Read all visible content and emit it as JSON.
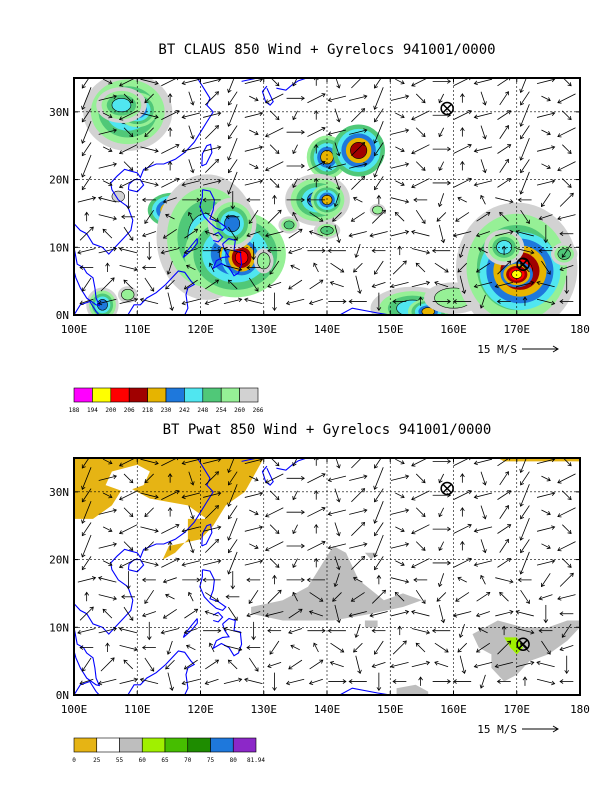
{
  "chart_data": [
    {
      "type": "heatmap",
      "title": "BT CLAUS 850 Wind + Gyrelocs 941001/0000",
      "x_ticks": [
        "100E",
        "110E",
        "120E",
        "130E",
        "140E",
        "150E",
        "160E",
        "170E",
        "180"
      ],
      "y_ticks": [
        "0N",
        "10N",
        "20N",
        "30N"
      ],
      "xlim": [
        100,
        180
      ],
      "ylim": [
        0,
        35
      ],
      "grid": true,
      "vector_scale_label": "15 M/S",
      "gyre_markers": [
        {
          "lon": 159,
          "lat": 30.5
        },
        {
          "lon": 171,
          "lat": 7.5
        }
      ],
      "colorbar": {
        "labels": [
          "188",
          "194",
          "200",
          "206",
          "218",
          "230",
          "242",
          "248",
          "254",
          "260",
          "266"
        ],
        "colors": [
          "#ff00ff",
          "#ffff00",
          "#ff0000",
          "#a00000",
          "#e6b400",
          "#1e78dc",
          "#50e6f0",
          "#50c878",
          "#96f096",
          "#d2d2d2"
        ]
      },
      "blobs": [
        {
          "lon": 108.5,
          "lat": 30.0,
          "c": [
            2.2,
            1.8
          ],
          "core": "#1e78dc"
        },
        {
          "lon": 110.0,
          "lat": 30.3,
          "c": [
            1.0,
            0.8
          ],
          "core": "#e6b400"
        },
        {
          "lon": 107.5,
          "lat": 31.0,
          "c": [
            1.5,
            1.0
          ],
          "core": "#50e6f0"
        },
        {
          "lon": 115.5,
          "lat": 15.5,
          "c": [
            1.2,
            0.8
          ],
          "core": "#a00000"
        },
        {
          "lon": 121.0,
          "lat": 11.5,
          "c": [
            3.0,
            3.5
          ],
          "core": "#50e6f0"
        },
        {
          "lon": 125.5,
          "lat": 9.0,
          "c": [
            2.5,
            2.0
          ],
          "core": "#e6b400"
        },
        {
          "lon": 126.5,
          "lat": 8.5,
          "c": [
            1.0,
            1.0
          ],
          "core": "#ff0000"
        },
        {
          "lon": 125.0,
          "lat": 13.5,
          "c": [
            1.2,
            1.2
          ],
          "core": "#1e78dc"
        },
        {
          "lon": 130.0,
          "lat": 8.0,
          "c": [
            1.0,
            1.2
          ],
          "core": "#96f096"
        },
        {
          "lon": 140.0,
          "lat": 23.3,
          "c": [
            1.0,
            1.0
          ],
          "core": "#e6b400"
        },
        {
          "lon": 145.0,
          "lat": 24.3,
          "c": [
            1.3,
            1.2
          ],
          "core": "#a00000"
        },
        {
          "lon": 138.5,
          "lat": 17.0,
          "c": [
            1.6,
            1.2
          ],
          "core": "#1e78dc"
        },
        {
          "lon": 140.0,
          "lat": 17.0,
          "c": [
            0.8,
            0.7
          ],
          "core": "#e6b400"
        },
        {
          "lon": 140.0,
          "lat": 12.5,
          "c": [
            1.0,
            0.6
          ],
          "core": "#50c878"
        },
        {
          "lon": 148.0,
          "lat": 15.5,
          "c": [
            0.8,
            0.6
          ],
          "core": "#96f096"
        },
        {
          "lon": 134.0,
          "lat": 13.3,
          "c": [
            0.8,
            0.6
          ],
          "core": "#50c878"
        },
        {
          "lon": 104.5,
          "lat": 1.5,
          "c": [
            0.8,
            0.8
          ],
          "core": "#1e78dc"
        },
        {
          "lon": 108.5,
          "lat": 3.0,
          "c": [
            1.0,
            0.8
          ],
          "core": "#96f096"
        },
        {
          "lon": 107.0,
          "lat": 17.5,
          "c": [
            1.0,
            0.8
          ],
          "core": "#d2d2d2"
        },
        {
          "lon": 153.5,
          "lat": 1.0,
          "c": [
            2.5,
            1.2
          ],
          "core": "#50e6f0"
        },
        {
          "lon": 156.0,
          "lat": 0.5,
          "c": [
            1.0,
            0.6
          ],
          "core": "#e6b400"
        },
        {
          "lon": 160.0,
          "lat": 2.5,
          "c": [
            3.0,
            1.5
          ],
          "core": "#96f096"
        },
        {
          "lon": 165.5,
          "lat": 1.5,
          "c": [
            1.0,
            1.0
          ],
          "core": "#50e6f0"
        },
        {
          "lon": 170.0,
          "lat": 7.0,
          "c": [
            3.0,
            3.0
          ],
          "core": "#1e78dc"
        },
        {
          "lon": 170.5,
          "lat": 6.5,
          "c": [
            2.0,
            1.8
          ],
          "core": "#ff0000"
        },
        {
          "lon": 170.0,
          "lat": 6.0,
          "c": [
            0.8,
            0.6
          ],
          "core": "#ffff00"
        },
        {
          "lon": 168.0,
          "lat": 10.0,
          "c": [
            1.2,
            1.0
          ],
          "core": "#50e6f0"
        },
        {
          "lon": 177.5,
          "lat": 9.0,
          "c": [
            1.0,
            0.8
          ],
          "core": "#50c878"
        }
      ]
    },
    {
      "type": "heatmap",
      "title": "BT Pwat 850 Wind + Gyrelocs 941001/0000",
      "x_ticks": [
        "100E",
        "110E",
        "120E",
        "130E",
        "140E",
        "150E",
        "160E",
        "170E",
        "180"
      ],
      "y_ticks": [
        "0N",
        "10N",
        "20N",
        "30N"
      ],
      "xlim": [
        100,
        180
      ],
      "ylim": [
        0,
        35
      ],
      "grid": true,
      "vector_scale_label": "15 M/S",
      "gyre_markers": [
        {
          "lon": 159,
          "lat": 30.5
        },
        {
          "lon": 171,
          "lat": 7.5
        }
      ],
      "colorbar": {
        "labels": [
          "0",
          "25",
          "55",
          "60",
          "65",
          "70",
          "75",
          "80",
          "81.94"
        ],
        "colors": [
          "#e6b414",
          "#ffffff",
          "#bebebe",
          "#a0f000",
          "#46be00",
          "#1e8c00",
          "#1e78dc",
          "#8c28c8"
        ]
      },
      "regions": [
        {
          "fill": "#e6b414",
          "lonlat": [
            [
              100,
              35
            ],
            [
              130,
              35
            ],
            [
              127,
              30
            ],
            [
              124,
              28
            ],
            [
              122,
              25
            ],
            [
              120,
              23
            ],
            [
              115,
              22
            ],
            [
              114,
              20
            ],
            [
              116,
              21
            ],
            [
              118,
              23
            ],
            [
              118,
              26
            ],
            [
              121,
              26
            ],
            [
              118,
              28
            ],
            [
              112,
              29
            ],
            [
              108,
              31
            ],
            [
              106,
              28
            ],
            [
              103,
              26
            ],
            [
              100,
              26
            ]
          ]
        },
        {
          "fill": "#ffffff",
          "lonlat": [
            [
              106,
              33
            ],
            [
              110,
              34
            ],
            [
              112,
              33
            ],
            [
              111,
              31
            ],
            [
              108,
              30
            ],
            [
              105,
              31
            ]
          ]
        },
        {
          "fill": "#e6b414",
          "lonlat": [
            [
              167,
              35
            ],
            [
              180,
              35
            ],
            [
              180,
              34.5
            ],
            [
              168,
              34.5
            ]
          ]
        },
        {
          "fill": "#bebebe",
          "lonlat": [
            [
              128,
              13
            ],
            [
              133,
              14
            ],
            [
              137,
              16
            ],
            [
              139,
              19
            ],
            [
              141,
              22
            ],
            [
              143,
              21
            ],
            [
              145,
              17
            ],
            [
              149,
              14
            ],
            [
              152,
              15
            ],
            [
              155,
              14
            ],
            [
              152,
              13
            ],
            [
              147,
              12
            ],
            [
              141,
              11
            ],
            [
              133,
              11
            ],
            [
              128,
              12
            ]
          ]
        },
        {
          "fill": "#bebebe",
          "lonlat": [
            [
              139,
              13
            ],
            [
              141,
              12
            ],
            [
              140,
              11
            ],
            [
              138,
              12
            ]
          ]
        },
        {
          "fill": "#bebebe",
          "lonlat": [
            [
              146,
              21
            ],
            [
              148,
              21
            ],
            [
              147,
              20
            ]
          ]
        },
        {
          "fill": "#bebebe",
          "lonlat": [
            [
              146,
              11
            ],
            [
              148,
              11
            ],
            [
              148,
              10
            ],
            [
              146,
              10
            ]
          ]
        },
        {
          "fill": "#bebebe",
          "lonlat": [
            [
              163,
              9
            ],
            [
              164,
              7
            ],
            [
              166,
              6
            ],
            [
              166,
              4
            ],
            [
              168,
              2
            ],
            [
              170,
              3
            ],
            [
              172,
              5
            ],
            [
              175,
              6
            ],
            [
              178,
              8
            ],
            [
              180,
              10
            ],
            [
              180,
              11
            ],
            [
              178,
              11
            ],
            [
              175,
              10
            ],
            [
              171,
              10
            ],
            [
              167,
              11
            ]
          ]
        },
        {
          "fill": "#bebebe",
          "lonlat": [
            [
              151,
              1
            ],
            [
              154,
              1.5
            ],
            [
              156,
              0.5
            ],
            [
              156,
              0
            ],
            [
              151,
              0
            ]
          ]
        },
        {
          "fill": "#a0f000",
          "lonlat": [
            [
              168,
              8.5
            ],
            [
              170,
              8.5
            ],
            [
              171,
              7
            ],
            [
              170,
              6
            ],
            [
              169,
              7
            ]
          ]
        }
      ]
    }
  ]
}
